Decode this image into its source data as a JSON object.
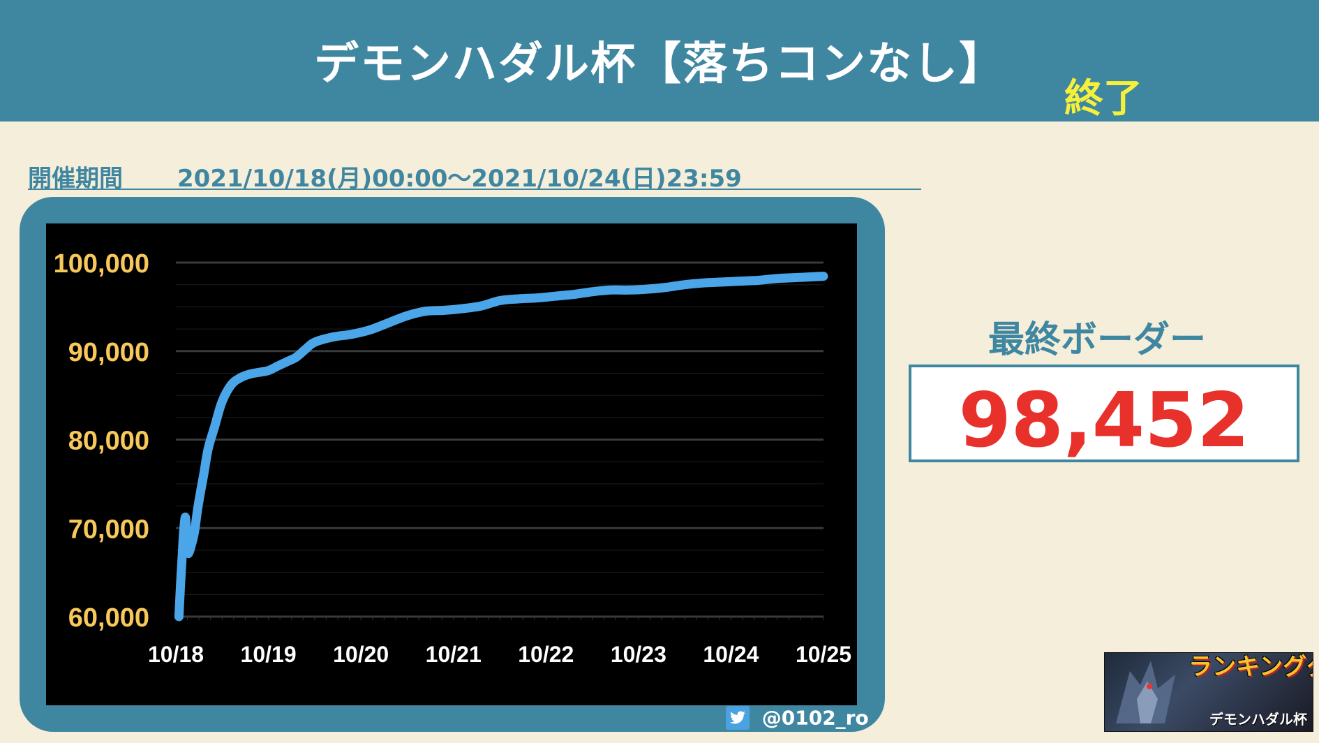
{
  "header": {
    "title": "デモンハダル杯【落ちコンなし】",
    "status": "終了"
  },
  "period": {
    "label": "開催期間",
    "value": "2021/10/18(月)00:00〜2021/10/24(日)23:59"
  },
  "border": {
    "label": "最終ボーダー",
    "value": "98,452"
  },
  "credit": {
    "handle": "@0102_ro",
    "icon": "twitter-bird-icon"
  },
  "logo": {
    "text": "ランキングダンジョン",
    "sub": "デモンハダル杯"
  },
  "colors": {
    "header_bg": "#3f86a0",
    "page_bg": "#f5eedb",
    "line": "#4aa6e8",
    "tick_label": "#f7c85a",
    "value": "#e8312a",
    "status": "#f7f03a"
  },
  "chart_data": {
    "type": "line",
    "title": "",
    "xlabel": "",
    "ylabel": "",
    "x_ticks": [
      "10/18",
      "10/19",
      "10/20",
      "10/21",
      "10/22",
      "10/23",
      "10/24",
      "10/25"
    ],
    "y_ticks": [
      "60,000",
      "70,000",
      "80,000",
      "90,000",
      "100,000"
    ],
    "ylim": [
      60000,
      100000
    ],
    "xlim": [
      "2021-10-18 00:00",
      "2021-10-25 00:00"
    ],
    "grid": true,
    "legend": "none",
    "series": [
      {
        "x": [
          "2021-10-18 00:48",
          "2021-10-18 01:12",
          "2021-10-18 01:36",
          "2021-10-18 02:00",
          "2021-10-18 02:24",
          "2021-10-18 02:38",
          "2021-10-18 02:53",
          "2021-10-18 03:07",
          "2021-10-18 03:22",
          "2021-10-18 03:50",
          "2021-10-18 04:48",
          "2021-10-18 05:46",
          "2021-10-18 07:12",
          "2021-10-18 08:24",
          "2021-10-18 10:05",
          "2021-10-18 12:00",
          "2021-10-18 14:24",
          "2021-10-18 16:48",
          "2021-10-18 19:12",
          "2021-10-18 21:36",
          "2021-10-19 00:00",
          "2021-10-19 02:24",
          "2021-10-19 04:48",
          "2021-10-19 07:12",
          "2021-10-19 09:36",
          "2021-10-19 12:00",
          "2021-10-19 16:48",
          "2021-10-19 21:36",
          "2021-10-20 02:24",
          "2021-10-20 07:12",
          "2021-10-20 12:00",
          "2021-10-20 16:48",
          "2021-10-20 21:36",
          "2021-10-21 02:24",
          "2021-10-21 07:12",
          "2021-10-21 12:00",
          "2021-10-21 16:48",
          "2021-10-21 21:36",
          "2021-10-22 02:24",
          "2021-10-22 07:12",
          "2021-10-22 12:00",
          "2021-10-22 16:48",
          "2021-10-22 21:36",
          "2021-10-23 02:24",
          "2021-10-23 07:12",
          "2021-10-23 12:00",
          "2021-10-23 16:48",
          "2021-10-23 21:36",
          "2021-10-24 02:24",
          "2021-10-24 07:12",
          "2021-10-24 12:00",
          "2021-10-24 16:48",
          "2021-10-24 21:36",
          "2021-10-24 23:59"
        ],
        "values": [
          60000,
          63500,
          66500,
          69500,
          71200,
          70500,
          68500,
          67300,
          67200,
          67800,
          69500,
          72500,
          76000,
          79000,
          81500,
          84300,
          86200,
          87000,
          87400,
          87600,
          87800,
          88300,
          88800,
          89300,
          90200,
          91000,
          91600,
          91900,
          92400,
          93200,
          94000,
          94500,
          94600,
          94800,
          95100,
          95700,
          95900,
          96000,
          96200,
          96400,
          96700,
          96900,
          96900,
          97000,
          97200,
          97500,
          97700,
          97800,
          97900,
          98000,
          98200,
          98300,
          98400,
          98452
        ]
      }
    ]
  }
}
